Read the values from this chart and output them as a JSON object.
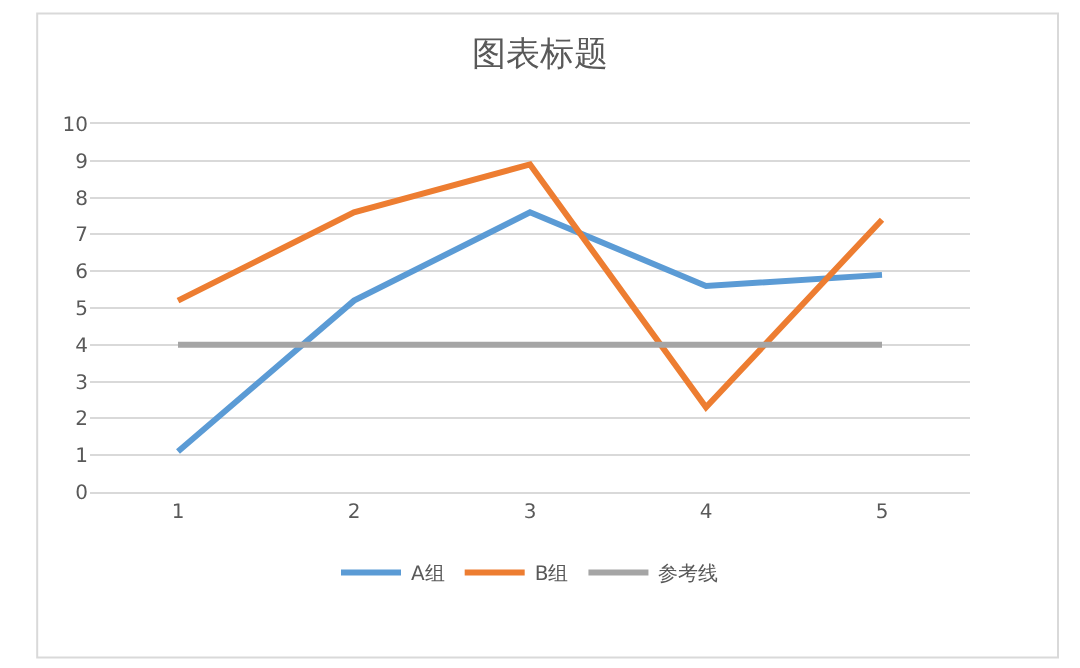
{
  "chart_data": {
    "type": "line",
    "title": "图表标题",
    "categories": [
      "1",
      "2",
      "3",
      "4",
      "5"
    ],
    "series": [
      {
        "name": "A组",
        "color": "#5b9bd5",
        "values": [
          1.1,
          5.2,
          7.6,
          5.6,
          5.9
        ]
      },
      {
        "name": "B组",
        "color": "#ed7d31",
        "values": [
          5.2,
          7.6,
          8.9,
          2.3,
          7.4
        ]
      },
      {
        "name": "参考线",
        "color": "#a5a5a5",
        "values": [
          4,
          4,
          4,
          4,
          4
        ]
      }
    ],
    "ylim": [
      0,
      10
    ],
    "yticks": [
      0,
      1,
      2,
      3,
      4,
      5,
      6,
      7,
      8,
      9,
      10
    ],
    "grid": "y",
    "legend": "bottom",
    "marker": "none",
    "line_style": "solid"
  }
}
